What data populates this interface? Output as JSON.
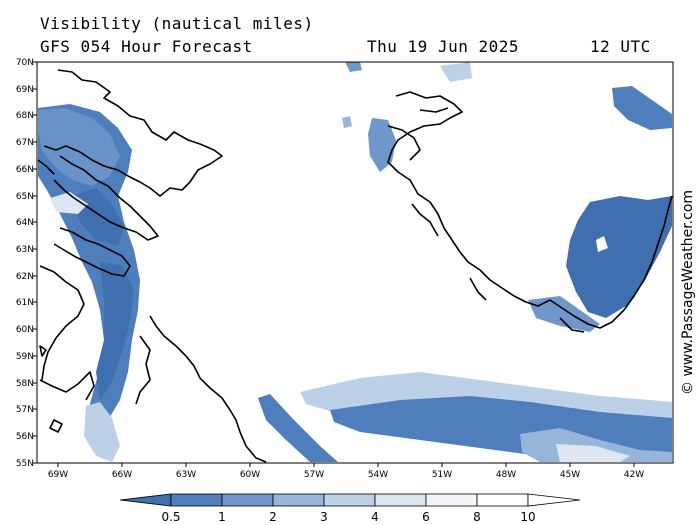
{
  "header": {
    "title": "Visibility (nautical miles)",
    "model": "GFS 054 Hour Forecast",
    "date": "Thu 19 Jun 2025",
    "time": "12 UTC"
  },
  "latitude_labels": [
    "70N",
    "69N",
    "68N",
    "67N",
    "66N",
    "65N",
    "64N",
    "63N",
    "62N",
    "61N",
    "60N",
    "59N",
    "58N",
    "57N",
    "56N",
    "55N"
  ],
  "longitude_labels": [
    "69W",
    "66W",
    "63W",
    "60W",
    "57W",
    "54W",
    "51W",
    "48W",
    "45W",
    "42W"
  ],
  "colorbar": {
    "labels": [
      "0.5",
      "1",
      "2",
      "3",
      "4",
      "6",
      "8",
      "10"
    ],
    "colors": [
      "#3f6fae",
      "#4e7fbc",
      "#6f97ca",
      "#97b4d9",
      "#bcd0e8",
      "#dde7f4",
      "#f2f6fb"
    ]
  },
  "credit": "© www.PassageWeather.com"
}
